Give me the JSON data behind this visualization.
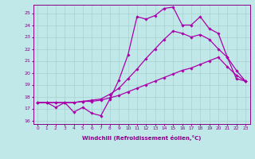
{
  "xlabel": "Windchill (Refroidissement éolien,°C)",
  "bg_color": "#c0e8e8",
  "grid_color": "#a8d0d0",
  "line_color": "#aa00aa",
  "xlim_min": -0.5,
  "xlim_max": 23.5,
  "ylim_min": 15.7,
  "ylim_max": 25.7,
  "xticks": [
    0,
    1,
    2,
    3,
    4,
    5,
    6,
    7,
    8,
    9,
    10,
    11,
    12,
    13,
    14,
    15,
    16,
    17,
    18,
    19,
    20,
    21,
    22,
    23
  ],
  "yticks": [
    16,
    17,
    18,
    19,
    20,
    21,
    22,
    23,
    24,
    25
  ],
  "series": [
    {
      "x": [
        0,
        1,
        2,
        3,
        4,
        5,
        6,
        7,
        8,
        9,
        10,
        11,
        12,
        13,
        14,
        15,
        16,
        17,
        18,
        19,
        20,
        21,
        22,
        23
      ],
      "y": [
        17.5,
        17.5,
        17.1,
        17.5,
        16.7,
        17.1,
        16.6,
        16.4,
        17.8,
        19.4,
        21.5,
        24.7,
        24.5,
        24.8,
        25.4,
        25.5,
        24.0,
        24.0,
        24.7,
        23.7,
        23.3,
        21.3,
        19.5,
        19.3
      ]
    },
    {
      "x": [
        0,
        1,
        2,
        3,
        4,
        5,
        6,
        7,
        8,
        9,
        10,
        11,
        12,
        13,
        14,
        15,
        16,
        17,
        18,
        19,
        20,
        21,
        22,
        23
      ],
      "y": [
        17.5,
        17.5,
        17.5,
        17.5,
        17.5,
        17.6,
        17.7,
        17.8,
        18.2,
        18.7,
        19.5,
        20.3,
        21.2,
        22.0,
        22.8,
        23.5,
        23.3,
        23.0,
        23.2,
        22.8,
        22.0,
        21.3,
        20.2,
        19.3
      ]
    },
    {
      "x": [
        0,
        1,
        2,
        3,
        4,
        5,
        6,
        7,
        8,
        9,
        10,
        11,
        12,
        13,
        14,
        15,
        16,
        17,
        18,
        19,
        20,
        21,
        22,
        23
      ],
      "y": [
        17.5,
        17.5,
        17.5,
        17.5,
        17.5,
        17.6,
        17.6,
        17.7,
        17.9,
        18.1,
        18.4,
        18.7,
        19.0,
        19.3,
        19.6,
        19.9,
        20.2,
        20.4,
        20.7,
        21.0,
        21.3,
        20.5,
        19.8,
        19.3
      ]
    }
  ]
}
